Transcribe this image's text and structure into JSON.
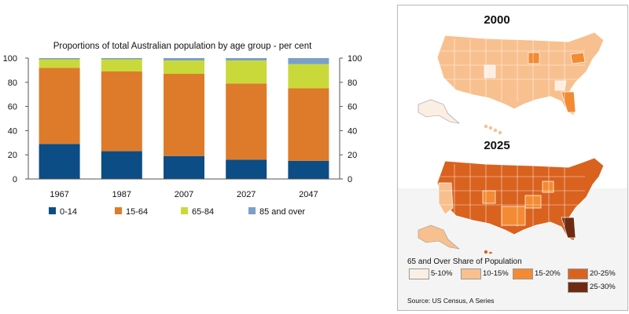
{
  "chart_data": {
    "type": "bar",
    "stacked": true,
    "title": "Proportions of total Australian population by age group - per cent",
    "categories": [
      "1967",
      "1987",
      "2007",
      "2027",
      "2047"
    ],
    "series": [
      {
        "name": "0-14",
        "color": "#0c4d85",
        "values": [
          29,
          23,
          19,
          16,
          15
        ]
      },
      {
        "name": "15-64",
        "color": "#de7b2b",
        "values": [
          63,
          66,
          68,
          63,
          60
        ]
      },
      {
        "name": "65-84",
        "color": "#c9d93a",
        "values": [
          7,
          10,
          11,
          19,
          20
        ]
      },
      {
        "name": "85 and over",
        "color": "#7aa0c7",
        "values": [
          1,
          1,
          2,
          2,
          5
        ]
      }
    ],
    "ylim": [
      0,
      100
    ],
    "yticks": [
      "0",
      "20",
      "40",
      "60",
      "80",
      "100"
    ],
    "grid": false,
    "legend_position": "bottom"
  },
  "maps": {
    "year_top": "2000",
    "year_bottom": "2025",
    "legend_title": "65 and Over Share of Population",
    "legend": [
      {
        "label": "5-10%",
        "color": "#fbeee3"
      },
      {
        "label": "10-15%",
        "color": "#f8c08f"
      },
      {
        "label": "15-20%",
        "color": "#f28b33"
      },
      {
        "label": "20-25%",
        "color": "#d9621f"
      },
      {
        "label": "25-30%",
        "color": "#6e2b12"
      }
    ],
    "source": "Source: US Census, A Series"
  }
}
